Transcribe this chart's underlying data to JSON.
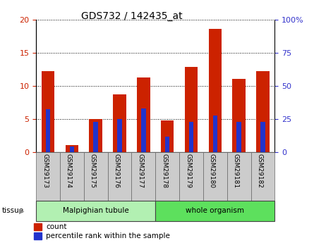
{
  "title": "GDS732 / 142435_at",
  "categories": [
    "GSM29173",
    "GSM29174",
    "GSM29175",
    "GSM29176",
    "GSM29177",
    "GSM29178",
    "GSM29179",
    "GSM29180",
    "GSM29181",
    "GSM29182"
  ],
  "count_values": [
    12.2,
    1.0,
    5.0,
    8.7,
    11.2,
    4.7,
    12.8,
    18.6,
    11.0,
    12.2
  ],
  "percentile_values": [
    32.5,
    4.0,
    22.5,
    25.0,
    33.0,
    11.5,
    22.5,
    27.5,
    22.5,
    22.5
  ],
  "tissue_groups": [
    {
      "label": "Malpighian tubule",
      "start": 0,
      "end": 5
    },
    {
      "label": "whole organism",
      "start": 5,
      "end": 10
    }
  ],
  "tissue_group_colors": [
    "#b2f0b2",
    "#5de05d"
  ],
  "ylim_left": [
    0,
    20
  ],
  "ylim_right": [
    0,
    100
  ],
  "yticks_left": [
    0,
    5,
    10,
    15,
    20
  ],
  "yticks_right": [
    0,
    25,
    50,
    75,
    100
  ],
  "bar_color": "#cc2200",
  "percentile_color": "#2233cc",
  "grid_color": "black",
  "tick_label_color_left": "#cc2200",
  "tick_label_color_right": "#3333cc",
  "xlabel_bg": "#cccccc",
  "tissue_label": "tissue"
}
